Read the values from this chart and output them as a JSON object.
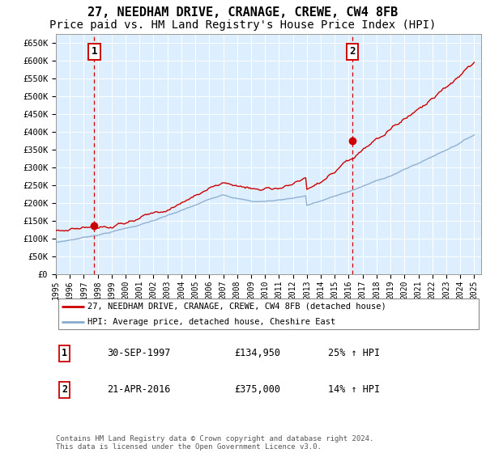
{
  "title": "27, NEEDHAM DRIVE, CRANAGE, CREWE, CW4 8FB",
  "subtitle": "Price paid vs. HM Land Registry's House Price Index (HPI)",
  "ylabel_ticks": [
    "£0",
    "£50K",
    "£100K",
    "£150K",
    "£200K",
    "£250K",
    "£300K",
    "£350K",
    "£400K",
    "£450K",
    "£500K",
    "£550K",
    "£600K",
    "£650K"
  ],
  "ytick_values": [
    0,
    50000,
    100000,
    150000,
    200000,
    250000,
    300000,
    350000,
    400000,
    450000,
    500000,
    550000,
    600000,
    650000
  ],
  "xmin": 1995.0,
  "xmax": 2025.5,
  "ymin": 0,
  "ymax": 675000,
  "purchase1_year": 1997.75,
  "purchase1_price": 134950,
  "purchase2_year": 2016.25,
  "purchase2_price": 375000,
  "legend_line1": "27, NEEDHAM DRIVE, CRANAGE, CREWE, CW4 8FB (detached house)",
  "legend_line2": "HPI: Average price, detached house, Cheshire East",
  "note1_date": "30-SEP-1997",
  "note1_price": "£134,950",
  "note1_hpi": "25% ↑ HPI",
  "note2_date": "21-APR-2016",
  "note2_price": "£375,000",
  "note2_hpi": "14% ↑ HPI",
  "footer": "Contains HM Land Registry data © Crown copyright and database right 2024.\nThis data is licensed under the Open Government Licence v3.0.",
  "line_color_red": "#cc0000",
  "line_color_blue": "#88aacc",
  "background_color": "#ddeeff",
  "box_color": "#cc0000",
  "title_fontsize": 11,
  "subtitle_fontsize": 10
}
